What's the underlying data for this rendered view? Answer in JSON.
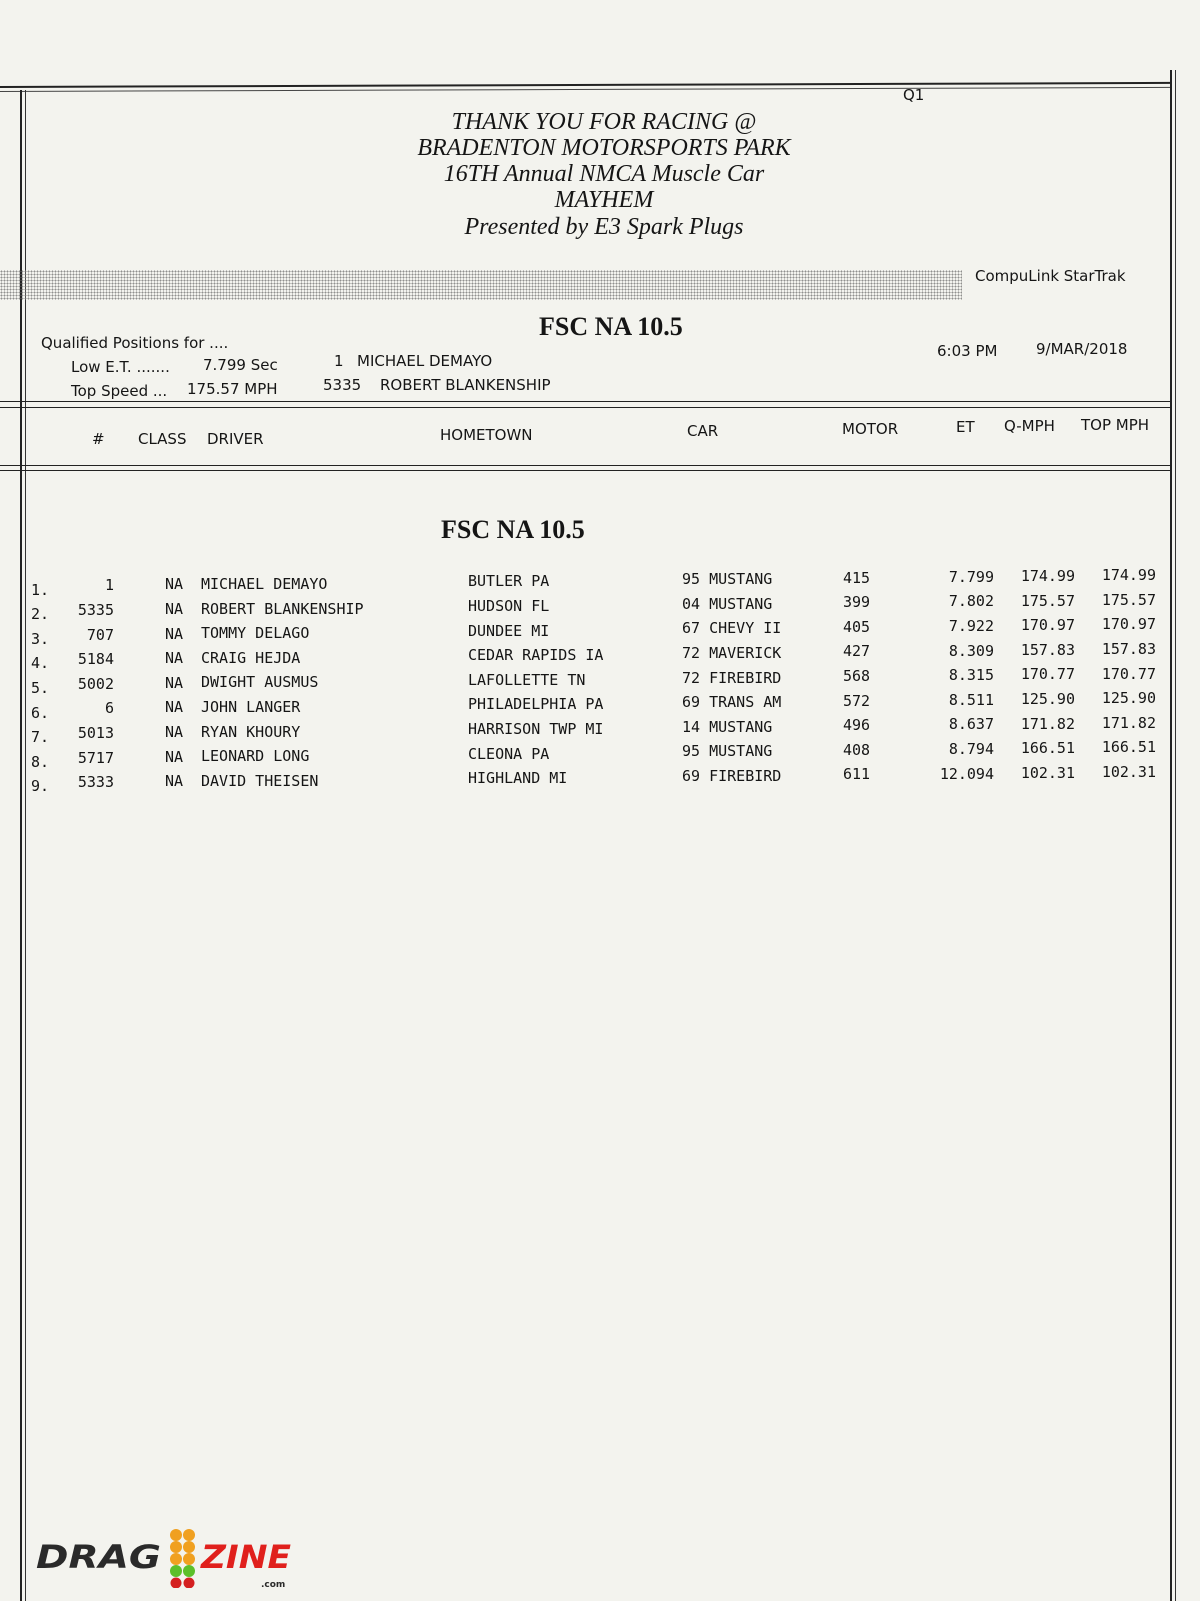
{
  "header": {
    "qualifying_round": "Q1",
    "title_lines": [
      "THANK YOU FOR RACING @",
      "BRADENTON MOTORSPORTS PARK",
      "16TH Annual NMCA Muscle Car",
      "MAYHEM",
      "Presented by E3 Spark Plugs"
    ],
    "system": "CompuLink  StarTrak"
  },
  "summary": {
    "class_title": "FSC NA 10.5",
    "qualified_label": "Qualified Positions for ....",
    "low_et_label": "Low E.T. .......",
    "low_et_value": "7.799  Sec",
    "low_et_car": "1",
    "low_et_driver": "MICHAEL DEMAYO",
    "top_speed_label": "Top Speed ...",
    "top_speed_value": "175.57  MPH",
    "top_speed_car": "5335",
    "top_speed_driver": "ROBERT BLANKENSHIP",
    "time": "6:03 PM",
    "date": "9/MAR/2018"
  },
  "table": {
    "columns": [
      "#",
      "CLASS",
      "DRIVER",
      "HOMETOWN",
      "CAR",
      "MOTOR",
      "ET",
      "Q-MPH",
      "TOP MPH"
    ],
    "section_title": "FSC NA 10.5",
    "rows": [
      {
        "pos": "1.",
        "num": "1",
        "class": "NA",
        "driver": "MICHAEL DEMAYO",
        "hometown": "BUTLER  PA",
        "car": "95 MUSTANG",
        "motor": "415",
        "et": "7.799",
        "qmph": "174.99",
        "top": "174.99"
      },
      {
        "pos": "2.",
        "num": "5335",
        "class": "NA",
        "driver": "ROBERT BLANKENSHIP",
        "hometown": "HUDSON  FL",
        "car": "04 MUSTANG",
        "motor": "399",
        "et": "7.802",
        "qmph": "175.57",
        "top": "175.57"
      },
      {
        "pos": "3.",
        "num": "707",
        "class": "NA",
        "driver": "TOMMY DELAGO",
        "hometown": "DUNDEE  MI",
        "car": "67 CHEVY II",
        "motor": "405",
        "et": "7.922",
        "qmph": "170.97",
        "top": "170.97"
      },
      {
        "pos": "4.",
        "num": "5184",
        "class": "NA",
        "driver": "CRAIG HEJDA",
        "hometown": "CEDAR RAPIDS  IA",
        "car": "72 MAVERICK",
        "motor": "427",
        "et": "8.309",
        "qmph": "157.83",
        "top": "157.83"
      },
      {
        "pos": "5.",
        "num": "5002",
        "class": "NA",
        "driver": "DWIGHT AUSMUS",
        "hometown": "LAFOLLETTE TN",
        "car": "72 FIREBIRD",
        "motor": "568",
        "et": "8.315",
        "qmph": "170.77",
        "top": "170.77"
      },
      {
        "pos": "6.",
        "num": "6",
        "class": "NA",
        "driver": "JOHN LANGER",
        "hometown": "PHILADELPHIA  PA",
        "car": "69 TRANS AM",
        "motor": "572",
        "et": "8.511",
        "qmph": "125.90",
        "top": "125.90"
      },
      {
        "pos": "7.",
        "num": "5013",
        "class": "NA",
        "driver": "RYAN KHOURY",
        "hometown": "HARRISON TWP  MI",
        "car": "14 MUSTANG",
        "motor": "496",
        "et": "8.637",
        "qmph": "171.82",
        "top": "171.82"
      },
      {
        "pos": "8.",
        "num": "5717",
        "class": "NA",
        "driver": "LEONARD LONG",
        "hometown": "CLEONA  PA",
        "car": "95 MUSTANG",
        "motor": "408",
        "et": "8.794",
        "qmph": "166.51",
        "top": "166.51"
      },
      {
        "pos": "9.",
        "num": "5333",
        "class": "NA",
        "driver": "DAVID THEISEN",
        "hometown": "HIGHLAND  MI",
        "car": "69 FIREBIRD",
        "motor": "611",
        "et": "12.094",
        "qmph": "102.31",
        "top": "102.31"
      }
    ]
  },
  "watermark": {
    "logo_text": "DRAGZINE.com",
    "colors": {
      "drag": "#2a2a2a",
      "zine": "#e0201c",
      "amber": "#f0a020",
      "green": "#5cbf2a",
      "red": "#d42020"
    }
  }
}
